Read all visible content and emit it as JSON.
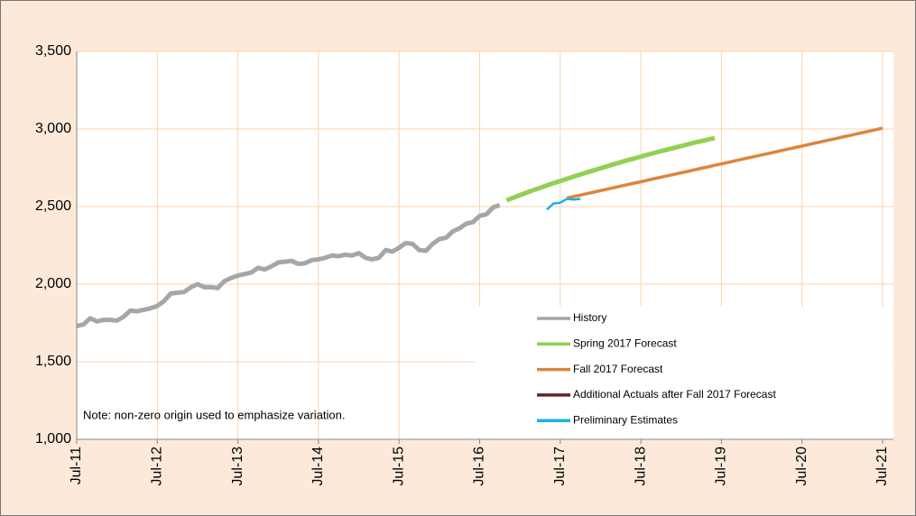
{
  "chart_data": {
    "type": "line",
    "note": "Note: non-zero origin used to emphasize variation.",
    "categories": [
      "Jul-11",
      null,
      null,
      null,
      null,
      null,
      null,
      null,
      null,
      null,
      null,
      null,
      "Jul-12",
      null,
      null,
      null,
      null,
      null,
      null,
      null,
      null,
      null,
      null,
      null,
      "Jul-13",
      null,
      null,
      null,
      null,
      null,
      null,
      null,
      null,
      null,
      null,
      null,
      "Jul-14",
      null,
      null,
      null,
      null,
      null,
      null,
      null,
      null,
      null,
      null,
      null,
      "Jul-15",
      null,
      null,
      null,
      null,
      null,
      null,
      null,
      null,
      null,
      null,
      null,
      "Jul-16",
      null,
      null,
      null,
      null,
      null,
      null,
      null,
      null,
      null,
      null,
      null,
      "Jul-17",
      null,
      null,
      null,
      null,
      null,
      null,
      null,
      null,
      null,
      null,
      null,
      "Jul-18",
      null,
      null,
      null,
      null,
      null,
      null,
      null,
      null,
      null,
      null,
      null,
      "Jul-19",
      null,
      null,
      null,
      null,
      null,
      null,
      null,
      null,
      null,
      null,
      null,
      "Jul-20",
      null,
      null,
      null,
      null,
      null,
      null,
      null,
      null,
      null,
      null,
      null,
      "Jul-21"
    ],
    "series": [
      {
        "name": "History",
        "color": "#a6a6a6",
        "width": 5,
        "values": [
          1730,
          1740,
          1780,
          1760,
          1770,
          1770,
          1765,
          1790,
          1830,
          1825,
          1835,
          1845,
          1860,
          1890,
          1940,
          1945,
          1950,
          1980,
          2000,
          1980,
          1980,
          1975,
          2020,
          2040,
          2055,
          2065,
          2075,
          2105,
          2095,
          2115,
          2140,
          2145,
          2150,
          2130,
          2135,
          2155,
          2160,
          2170,
          2185,
          2180,
          2190,
          2185,
          2200,
          2170,
          2160,
          2170,
          2220,
          2210,
          2235,
          2265,
          2260,
          2220,
          2215,
          2260,
          2290,
          2300,
          2340,
          2360,
          2390,
          2400,
          2440,
          2450,
          2495,
          2510,
          null,
          null,
          null,
          null,
          null,
          null,
          null,
          null,
          null,
          null,
          null,
          null,
          null,
          null,
          null,
          null,
          null,
          null,
          null,
          null,
          null,
          null,
          null,
          null,
          null,
          null,
          null,
          null,
          null,
          null,
          null,
          null,
          null,
          null,
          null,
          null,
          null,
          null,
          null,
          null,
          null,
          null,
          null,
          null,
          null,
          null,
          null,
          null,
          null,
          null,
          null,
          null,
          null,
          null,
          null,
          null,
          null
        ]
      },
      {
        "name": "Spring 2017 Forecast",
        "color": "#92d050",
        "width": 5,
        "values": [
          null,
          null,
          null,
          null,
          null,
          null,
          null,
          null,
          null,
          null,
          null,
          null,
          null,
          null,
          null,
          null,
          null,
          null,
          null,
          null,
          null,
          null,
          null,
          null,
          null,
          null,
          null,
          null,
          null,
          null,
          null,
          null,
          null,
          null,
          null,
          null,
          null,
          null,
          null,
          null,
          null,
          null,
          null,
          null,
          null,
          null,
          null,
          null,
          null,
          null,
          null,
          null,
          null,
          null,
          null,
          null,
          null,
          null,
          null,
          null,
          null,
          null,
          null,
          null,
          2540,
          2557,
          2574,
          2590,
          2606,
          2621,
          2636,
          2651,
          2665,
          2679,
          2693,
          2707,
          2721,
          2734,
          2747,
          2760,
          2773,
          2786,
          2798,
          2810,
          2822,
          2834,
          2846,
          2857,
          2868,
          2879,
          2890,
          2901,
          2912,
          2922,
          2932,
          2942,
          null,
          null,
          null,
          null,
          null,
          null,
          null,
          null,
          null,
          null,
          null,
          null,
          null,
          null,
          null,
          null,
          null,
          null,
          null,
          null,
          null,
          null,
          null,
          null,
          null
        ]
      },
      {
        "name": "Fall 2017 Forecast",
        "color": "#dd853b",
        "width": 3.5,
        "values": [
          null,
          null,
          null,
          null,
          null,
          null,
          null,
          null,
          null,
          null,
          null,
          null,
          null,
          null,
          null,
          null,
          null,
          null,
          null,
          null,
          null,
          null,
          null,
          null,
          null,
          null,
          null,
          null,
          null,
          null,
          null,
          null,
          null,
          null,
          null,
          null,
          null,
          null,
          null,
          null,
          null,
          null,
          null,
          null,
          null,
          null,
          null,
          null,
          null,
          null,
          null,
          null,
          null,
          null,
          null,
          null,
          null,
          null,
          null,
          null,
          null,
          null,
          null,
          null,
          null,
          null,
          null,
          null,
          null,
          null,
          null,
          null,
          null,
          2555,
          2565,
          2574,
          2584,
          2593,
          2603,
          2612,
          2622,
          2632,
          2641,
          2651,
          2660,
          2670,
          2680,
          2689,
          2699,
          2708,
          2718,
          2727,
          2737,
          2747,
          2756,
          2766,
          2775,
          2785,
          2795,
          2804,
          2814,
          2823,
          2833,
          2842,
          2852,
          2862,
          2871,
          2881,
          2890,
          2900,
          2910,
          2919,
          2929,
          2938,
          2948,
          2957,
          2967,
          2977,
          2986,
          2996,
          3005
        ]
      },
      {
        "name": "Additional Actuals after Fall 2017 Forecast",
        "color": "#632523",
        "width": 3.5,
        "values": [
          null,
          null,
          null,
          null,
          null,
          null,
          null,
          null,
          null,
          null,
          null,
          null,
          null,
          null,
          null,
          null,
          null,
          null,
          null,
          null,
          null,
          null,
          null,
          null,
          null,
          null,
          null,
          null,
          null,
          null,
          null,
          null,
          null,
          null,
          null,
          null,
          null,
          null,
          null,
          null,
          null,
          null,
          null,
          null,
          null,
          null,
          null,
          null,
          null,
          null,
          null,
          null,
          null,
          null,
          null,
          null,
          null,
          null,
          null,
          null,
          null,
          null,
          null,
          null,
          null,
          null,
          null,
          null,
          null,
          null,
          null,
          null,
          null,
          null,
          null,
          null,
          null,
          null,
          null,
          null,
          null,
          null,
          null,
          null,
          null,
          null,
          null,
          null,
          null,
          null,
          null,
          null,
          null,
          null,
          null,
          null,
          null,
          null,
          null,
          null,
          null,
          null,
          null,
          null,
          null,
          null,
          null,
          null,
          null,
          null,
          null,
          null,
          null,
          null,
          null,
          null,
          null,
          null,
          null,
          null,
          null
        ]
      },
      {
        "name": "Preliminary Estimates",
        "color": "#1cb0e8",
        "width": 2.5,
        "values": [
          null,
          null,
          null,
          null,
          null,
          null,
          null,
          null,
          null,
          null,
          null,
          null,
          null,
          null,
          null,
          null,
          null,
          null,
          null,
          null,
          null,
          null,
          null,
          null,
          null,
          null,
          null,
          null,
          null,
          null,
          null,
          null,
          null,
          null,
          null,
          null,
          null,
          null,
          null,
          null,
          null,
          null,
          null,
          null,
          null,
          null,
          null,
          null,
          null,
          null,
          null,
          null,
          null,
          null,
          null,
          null,
          null,
          null,
          null,
          null,
          null,
          null,
          null,
          null,
          null,
          null,
          null,
          null,
          null,
          null,
          2480,
          2520,
          2525,
          2550,
          2545,
          2550,
          null,
          null,
          null,
          null,
          null,
          null,
          null,
          null,
          null,
          null,
          null,
          null,
          null,
          null,
          null,
          null,
          null,
          null,
          null,
          null,
          null,
          null,
          null,
          null,
          null,
          null,
          null,
          null,
          null,
          null,
          null,
          null,
          null,
          null,
          null,
          null,
          null,
          null,
          null,
          null,
          null,
          null,
          null,
          null,
          null
        ]
      }
    ],
    "ylim": [
      1000,
      3500
    ],
    "yticks": [
      {
        "value": 1000,
        "label": "1,000"
      },
      {
        "value": 1500,
        "label": "1,500"
      },
      {
        "value": 2000,
        "label": "2,000"
      },
      {
        "value": 2500,
        "label": "2,500"
      },
      {
        "value": 3000,
        "label": "3,000"
      },
      {
        "value": 3500,
        "label": "3,500"
      }
    ],
    "grid": true
  }
}
